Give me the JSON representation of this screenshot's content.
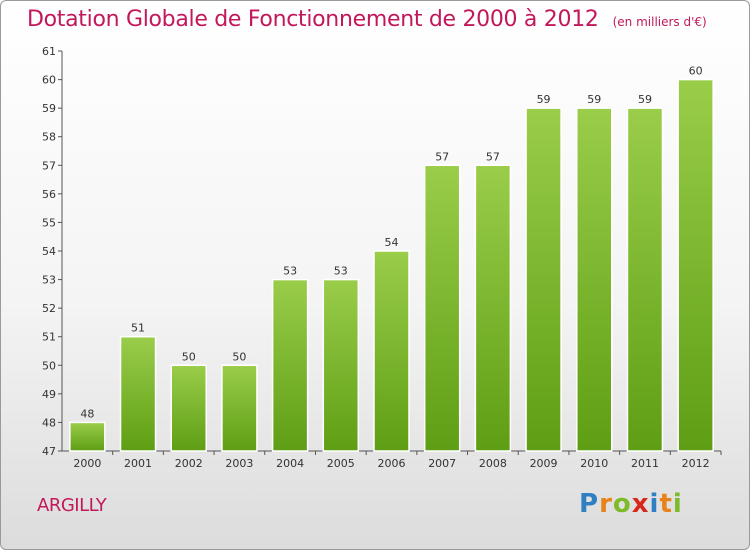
{
  "chart_data": {
    "type": "bar",
    "title": "Dotation Globale de Fonctionnement de 2000 à 2012",
    "subtitle": "(en milliers d'€)",
    "xlabel": "",
    "ylabel": "",
    "categories": [
      "2000",
      "2001",
      "2002",
      "2003",
      "2004",
      "2005",
      "2006",
      "2007",
      "2008",
      "2009",
      "2010",
      "2011",
      "2012"
    ],
    "values": [
      48,
      51,
      50,
      50,
      53,
      53,
      54,
      57,
      57,
      59,
      59,
      59,
      60
    ],
    "ylim": [
      47,
      61
    ],
    "yticks": [
      47,
      48,
      49,
      50,
      51,
      52,
      53,
      54,
      55,
      56,
      57,
      58,
      59,
      60,
      61
    ],
    "grid": false,
    "legend": "none",
    "bar_color_top": "#9acd4a",
    "bar_color_bottom": "#5e9e14"
  },
  "footer": {
    "commune": "ARGILLY",
    "logo": {
      "letters": [
        {
          "ch": "P",
          "color": "#2f7fc2"
        },
        {
          "ch": "r",
          "color": "#e8821a"
        },
        {
          "ch": "o",
          "color": "#7dbb2a"
        },
        {
          "ch": "x",
          "color": "#d8281c"
        },
        {
          "ch": "i",
          "color": "#2f7fc2"
        },
        {
          "ch": "t",
          "color": "#e8821a"
        },
        {
          "ch": "i",
          "color": "#7dbb2a"
        }
      ]
    }
  }
}
